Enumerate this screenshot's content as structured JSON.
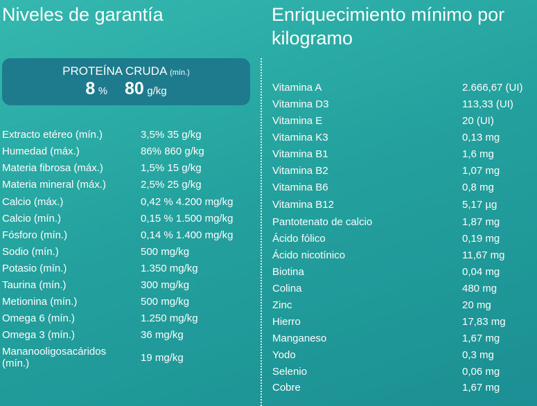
{
  "left": {
    "title": "Niveles de garantía",
    "protein": {
      "label": "PROTEÍNA CRUDA",
      "qualifier": "(mín.)",
      "percent_value": "8",
      "percent_unit": "%",
      "gkg_value": "80",
      "gkg_unit": "g/kg"
    },
    "rows": [
      {
        "label": "Extracto etéreo (mín.)",
        "value": "3,5% 35 g/kg"
      },
      {
        "label": "Humedad (máx.)",
        "value": "86% 860 g/kg"
      },
      {
        "label": "Materia fibrosa (máx.)",
        "value": "1,5% 15 g/kg"
      },
      {
        "label": "Materia mineral (máx.)",
        "value": "2,5% 25 g/kg"
      },
      {
        "label": "Calcio (máx.)",
        "value": "0,42 % 4.200 mg/kg"
      },
      {
        "label": "Calcio (mín.)",
        "value": "0,15 % 1.500 mg/kg"
      },
      {
        "label": "Fósforo (mín.)",
        "value": "0,14 % 1.400 mg/kg"
      },
      {
        "label": "Sodio (mín.)",
        "value": "500 mg/kg"
      },
      {
        "label": "Potasio (mín.)",
        "value": "1.350 mg/kg"
      },
      {
        "label": "Taurina (mín.)",
        "value": "300 mg/kg"
      },
      {
        "label": "Metionina (mín.)",
        "value": "500 mg/kg"
      },
      {
        "label": "Omega 6 (mín.)",
        "value": "1.250 mg/kg"
      },
      {
        "label": "Omega 3 (mín.)",
        "value": "36 mg/kg"
      },
      {
        "label": "Mananooligosacáridos (mín.)",
        "value": "19 mg/kg"
      }
    ]
  },
  "right": {
    "title": "Enriquecimiento mínimo por kilogramo",
    "rows": [
      {
        "label": "Vitamina A",
        "value": "2.666,67 (UI)"
      },
      {
        "label": "Vitamina D3",
        "value": "113,33 (UI)"
      },
      {
        "label": "Vitamina E",
        "value": "20 (UI)"
      },
      {
        "label": "Vitamina K3",
        "value": "0,13 mg"
      },
      {
        "label": "Vitamina B1",
        "value": "1,6 mg"
      },
      {
        "label": "Vitamina B2",
        "value": "1,07 mg"
      },
      {
        "label": "Vitamina B6",
        "value": "0,8 mg"
      },
      {
        "label": "Vitamina B12",
        "value": "5,17 µg"
      },
      {
        "label": "Pantotenato de calcio",
        "value": "1,87 mg"
      },
      {
        "label": "Ácido fólico",
        "value": "0,19 mg"
      },
      {
        "label": "Ácido nicotínico",
        "value": "11,67 mg"
      },
      {
        "label": "Biotina",
        "value": "0,04 mg"
      },
      {
        "label": "Colina",
        "value": "480 mg"
      },
      {
        "label": "Zinc",
        "value": "20 mg"
      },
      {
        "label": "Hierro",
        "value": "17,83 mg"
      },
      {
        "label": "Manganeso",
        "value": "1,67 mg"
      },
      {
        "label": "Yodo",
        "value": "0,3 mg"
      },
      {
        "label": "Selenio",
        "value": "0,06 mg"
      },
      {
        "label": "Cobre",
        "value": "1,67 mg"
      }
    ]
  }
}
